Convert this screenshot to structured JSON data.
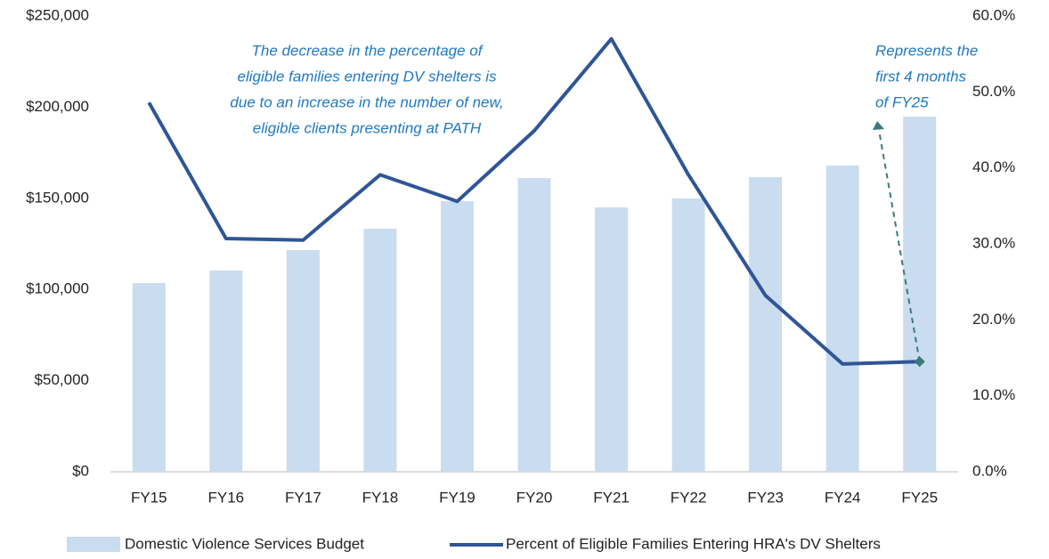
{
  "chart_data": {
    "type": "bar_line",
    "categories": [
      "FY15",
      "FY16",
      "FY17",
      "FY18",
      "FY19",
      "FY20",
      "FY21",
      "FY22",
      "FY23",
      "FY24",
      "FY25"
    ],
    "series": [
      {
        "name": "Domestic Violence Services Budget",
        "color": "#c9dcf0",
        "type": "bar",
        "values": [
          103500,
          110400,
          121600,
          133300,
          148400,
          161100,
          145000,
          149900,
          161600,
          168000,
          194800
        ]
      },
      {
        "name": "Percent of Eligible Families Entering HRA's DV Shelters",
        "color": "#2f5597",
        "type": "line",
        "axis": "y2",
        "values": [
          48.6,
          30.7,
          30.5,
          39.1,
          35.6,
          44.9,
          57.0,
          39.1,
          23.2,
          14.2,
          14.5
        ]
      }
    ],
    "ylim": [
      0,
      250000
    ],
    "yticks": [
      {
        "value": 0,
        "label": "$0"
      },
      {
        "value": 50000,
        "label": "$50,000"
      },
      {
        "value": 100000,
        "label": "$100,000"
      },
      {
        "value": 150000,
        "label": "$150,000"
      },
      {
        "value": 200000,
        "label": "$200,000"
      },
      {
        "value": 250000,
        "label": "$250,000"
      }
    ],
    "y2lim": [
      0,
      60
    ],
    "y2ticks": [
      {
        "value": 0,
        "label": "0.0%"
      },
      {
        "value": 10,
        "label": "10.0%"
      },
      {
        "value": 20,
        "label": "20.0%"
      },
      {
        "value": 30,
        "label": "30.0%"
      },
      {
        "value": 40,
        "label": "40.0%"
      },
      {
        "value": 50,
        "label": "50.0%"
      },
      {
        "value": 60,
        "label": "60.0%"
      }
    ],
    "annotations": [
      {
        "lines": [
          "The decrease in the percentage of",
          "eligible families entering DV shelters is",
          "due to an increase in the number of new,",
          "eligible clients presenting at PATH"
        ]
      },
      {
        "lines": [
          "Represents the",
          "first 4 months",
          "of FY25"
        ]
      }
    ],
    "legend": "bottom"
  }
}
